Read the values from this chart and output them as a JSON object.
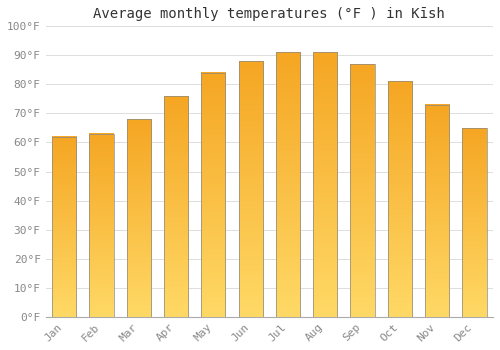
{
  "title": "Average monthly temperatures (°F ) in Kīsh",
  "months": [
    "Jan",
    "Feb",
    "Mar",
    "Apr",
    "May",
    "Jun",
    "Jul",
    "Aug",
    "Sep",
    "Oct",
    "Nov",
    "Dec"
  ],
  "values": [
    62,
    63,
    68,
    76,
    84,
    88,
    91,
    91,
    87,
    81,
    73,
    65
  ],
  "ylim": [
    0,
    100
  ],
  "yticks": [
    0,
    10,
    20,
    30,
    40,
    50,
    60,
    70,
    80,
    90,
    100
  ],
  "bar_color_top": "#F5A623",
  "bar_color_bottom": "#FFD966",
  "background_color": "#ffffff",
  "grid_color": "#dddddd",
  "title_fontsize": 10,
  "tick_fontsize": 8,
  "tick_color": "#888888",
  "font_family": "monospace"
}
